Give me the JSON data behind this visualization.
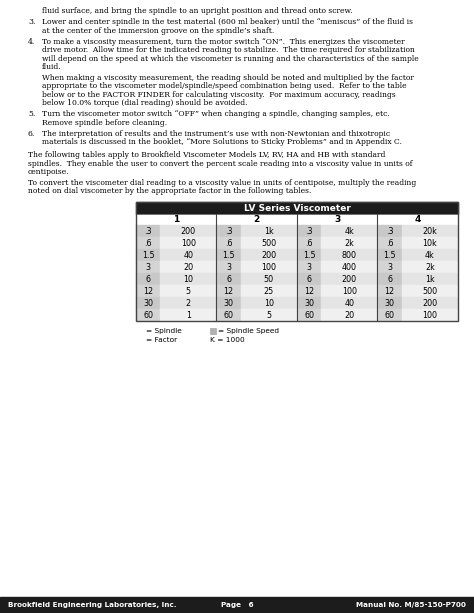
{
  "title_text": "LV Series Viscometer",
  "col_headers": [
    "1",
    "2",
    "3",
    "4"
  ],
  "table_data": [
    [
      ".3",
      "200",
      ".3",
      "1k",
      ".3",
      "4k",
      ".3",
      "20k"
    ],
    [
      ".6",
      "100",
      ".6",
      "500",
      ".6",
      "2k",
      ".6",
      "10k"
    ],
    [
      "1.5",
      "40",
      "1.5",
      "200",
      "1.5",
      "800",
      "1.5",
      "4k"
    ],
    [
      "3",
      "20",
      "3",
      "100",
      "3",
      "400",
      "3",
      "2k"
    ],
    [
      "6",
      "10",
      "6",
      "50",
      "6",
      "200",
      "6",
      "1k"
    ],
    [
      "12",
      "5",
      "12",
      "25",
      "12",
      "100",
      "12",
      "500"
    ],
    [
      "30",
      "2",
      "30",
      "10",
      "30",
      "40",
      "30",
      "200"
    ],
    [
      "60",
      "1",
      "60",
      "5",
      "60",
      "20",
      "60",
      "100"
    ]
  ],
  "header_bg": "#1c1c1c",
  "header_fg": "#ffffff",
  "col_header_bg": "#ffffff",
  "spindle_bg_even": "#c8c8c8",
  "spindle_bg_odd": "#d4d4d4",
  "factor_bg_even": "#e4e4e4",
  "factor_bg_odd": "#f0f0f0",
  "legend_text1": "= Spindle",
  "legend_text2": "= Factor",
  "legend_text3": "= Spindle Speed",
  "legend_text4": "K = 1000",
  "footer_left": "Brookfield Engineering Laboratories, Inc.",
  "footer_center": "Page   6",
  "footer_right": "Manual No. M/85-150-P700",
  "footer_bg": "#1c1c1c",
  "footer_fg": "#ffffff",
  "page_bg": "#ffffff"
}
